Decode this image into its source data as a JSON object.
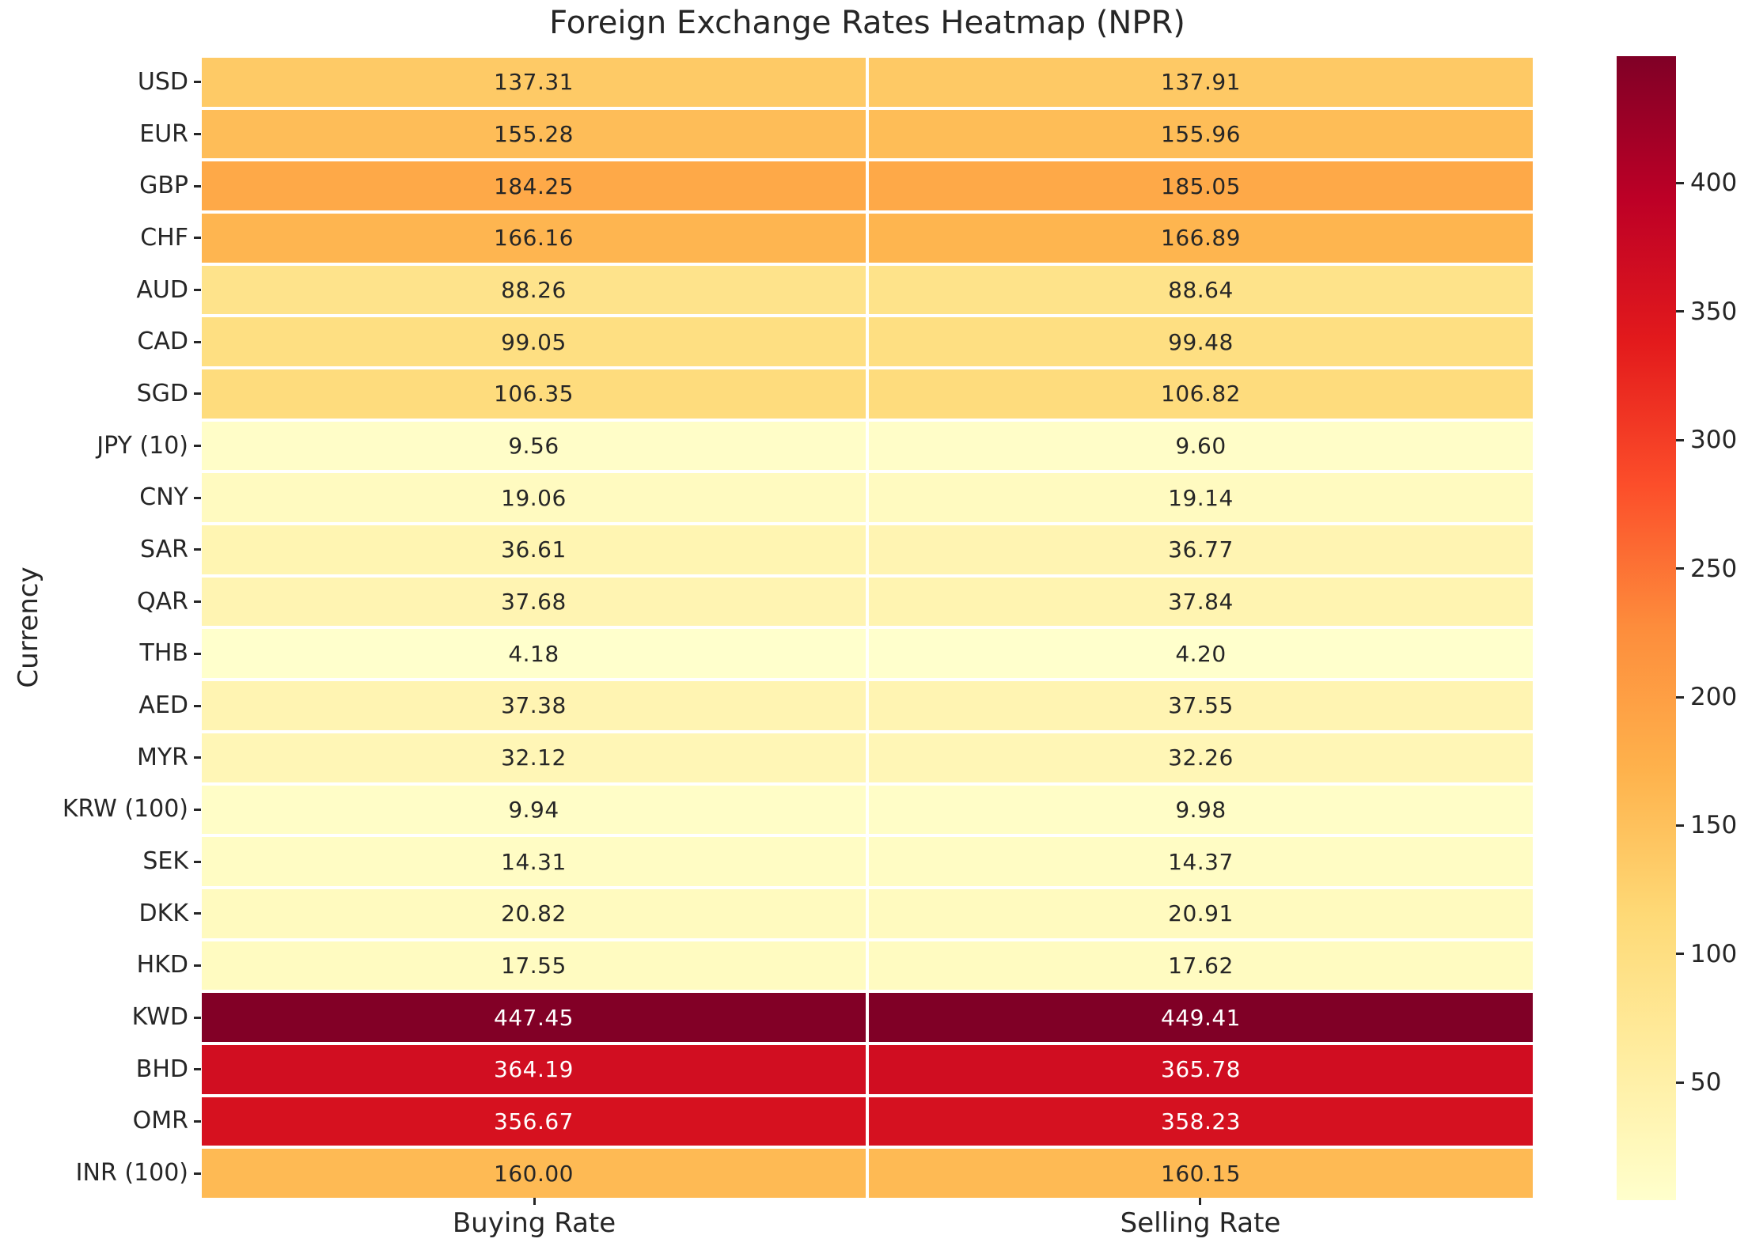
{
  "chart_data": {
    "type": "heatmap",
    "title": "Foreign Exchange Rates Heatmap (NPR)",
    "xlabel": "",
    "ylabel": "Currency",
    "columns": [
      "Buying Rate",
      "Selling Rate"
    ],
    "rows": [
      "USD",
      "EUR",
      "GBP",
      "CHF",
      "AUD",
      "CAD",
      "SGD",
      "JPY (10)",
      "CNY",
      "SAR",
      "QAR",
      "THB",
      "AED",
      "MYR",
      "KRW (100)",
      "SEK",
      "DKK",
      "HKD",
      "KWD",
      "BHD",
      "OMR",
      "INR (100)"
    ],
    "values": [
      [
        137.31,
        137.91
      ],
      [
        155.28,
        155.96
      ],
      [
        184.25,
        185.05
      ],
      [
        166.16,
        166.89
      ],
      [
        88.26,
        88.64
      ],
      [
        99.05,
        99.48
      ],
      [
        106.35,
        106.82
      ],
      [
        9.56,
        9.6
      ],
      [
        19.06,
        19.14
      ],
      [
        36.61,
        36.77
      ],
      [
        37.68,
        37.84
      ],
      [
        4.18,
        4.2
      ],
      [
        37.38,
        37.55
      ],
      [
        32.12,
        32.26
      ],
      [
        9.94,
        9.98
      ],
      [
        14.31,
        14.37
      ],
      [
        20.82,
        20.91
      ],
      [
        17.55,
        17.62
      ],
      [
        447.45,
        449.41
      ],
      [
        364.19,
        365.78
      ],
      [
        356.67,
        358.23
      ],
      [
        160.0,
        160.15
      ]
    ],
    "value_decimals": 2,
    "vmin": 4.18,
    "vmax": 449.41,
    "colormap": "YlOrRd",
    "colormap_stops": [
      [
        0.0,
        "#ffffcc"
      ],
      [
        0.125,
        "#ffeda0"
      ],
      [
        0.25,
        "#fed976"
      ],
      [
        0.375,
        "#feb24c"
      ],
      [
        0.5,
        "#fd8d3c"
      ],
      [
        0.625,
        "#fc4e2a"
      ],
      [
        0.75,
        "#e31a1c"
      ],
      [
        0.875,
        "#bd0026"
      ],
      [
        1.0,
        "#800026"
      ]
    ],
    "colorbar_ticks": [
      50,
      100,
      150,
      200,
      250,
      300,
      350,
      400
    ],
    "legend_position": "right",
    "grid_on": false,
    "grid_line_color": "#ffffff",
    "annotation_color_dark": "#262626",
    "annotation_color_light": "#ffffff",
    "background": "#ffffff"
  }
}
